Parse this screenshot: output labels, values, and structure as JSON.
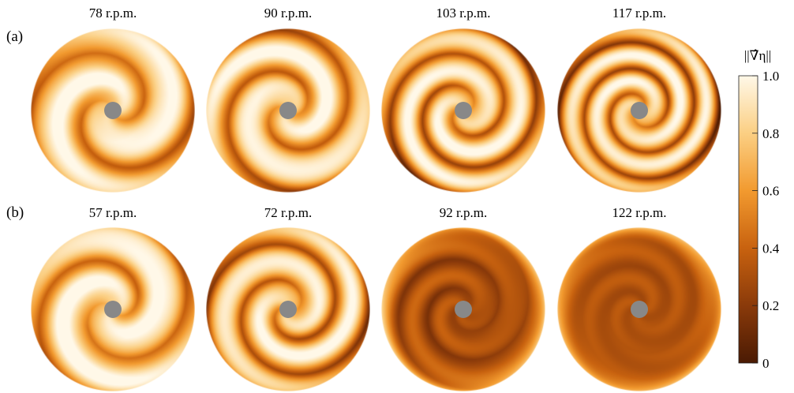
{
  "figure": {
    "panels": [
      {
        "label": "(a)",
        "disks": [
          {
            "title": "78 r.p.m.",
            "arms": 2,
            "wind": 3.0,
            "offset": 0.0,
            "level": 0.78,
            "contrast": 0.62,
            "rimDark": 0.15
          },
          {
            "title": "90 r.p.m.",
            "arms": 2,
            "wind": 3.8,
            "offset": 0.3,
            "level": 0.76,
            "contrast": 0.66,
            "rimDark": 0.18
          },
          {
            "title": "103 r.p.m.",
            "arms": 2,
            "wind": 5.0,
            "offset": 0.6,
            "level": 0.72,
            "contrast": 0.72,
            "rimDark": 0.25
          },
          {
            "title": "117 r.p.m.",
            "arms": 2,
            "wind": 6.2,
            "offset": 0.9,
            "level": 0.7,
            "contrast": 0.74,
            "rimDark": 0.3
          }
        ]
      },
      {
        "label": "(b)",
        "disks": [
          {
            "title": "57 r.p.m.",
            "arms": 2,
            "wind": 3.2,
            "offset": 0.2,
            "level": 0.8,
            "contrast": 0.62,
            "rimDark": 0.15
          },
          {
            "title": "72 r.p.m.",
            "arms": 2,
            "wind": 4.5,
            "offset": 0.5,
            "level": 0.72,
            "contrast": 0.7,
            "rimDark": 0.22
          },
          {
            "title": "92 r.p.m.",
            "arms": 2,
            "wind": 5.5,
            "offset": 0.7,
            "level": 0.3,
            "contrast": 0.2,
            "rimDark": -0.45
          },
          {
            "title": "122 r.p.m.",
            "arms": 2,
            "wind": 6.0,
            "offset": 0.9,
            "level": 0.32,
            "contrast": 0.05,
            "rimDark": -0.4
          }
        ]
      }
    ],
    "colorbar": {
      "label": "||∇̂η||",
      "min": 0,
      "max": 1.0,
      "ticks": [
        "0",
        "0.2",
        "0.4",
        "0.6",
        "0.8",
        "1.0"
      ],
      "stops": [
        "#4a1a03",
        "#8a3a0a",
        "#c8620f",
        "#f29a2f",
        "#fbcf83",
        "#fff8e8"
      ]
    },
    "hub_color": "#888888"
  }
}
